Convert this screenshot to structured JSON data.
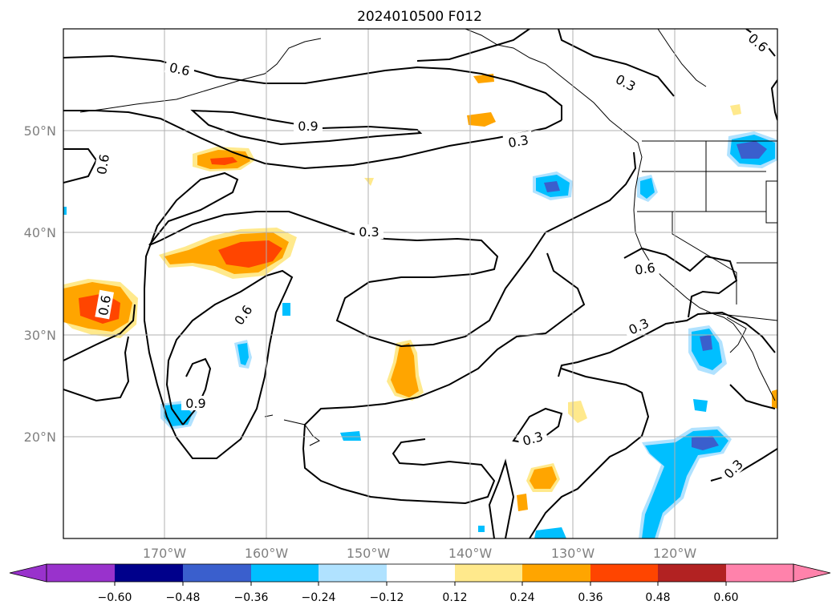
{
  "title": "2024010500 F012",
  "lat_labels": [
    "50°N",
    "40°N",
    "30°N",
    "20°N"
  ],
  "lon_labels": [
    "170°W",
    "160°W",
    "150°W",
    "140°W",
    "130°W",
    "120°W"
  ],
  "contour_labels": [
    "0.6",
    "0.9",
    "0.3",
    "0.6",
    "0.3",
    "0.6",
    "0.6",
    "0.6",
    "0.9",
    "0.3",
    "0.3",
    "0.3",
    "0.3",
    "0.6"
  ],
  "colorbar": {
    "ticks": [
      "−0.60",
      "−0.48",
      "−0.36",
      "−0.24",
      "−0.12",
      "0.12",
      "0.24",
      "0.36",
      "0.48",
      "0.60"
    ],
    "colors": [
      "#9932cc",
      "#00008b",
      "#3a5fcd",
      "#00bfff",
      "#b0e2ff",
      "#ffffff",
      "#ffe98c",
      "#ffa500",
      "#ff4500",
      "#b22222",
      "#ff82ab"
    ]
  }
}
